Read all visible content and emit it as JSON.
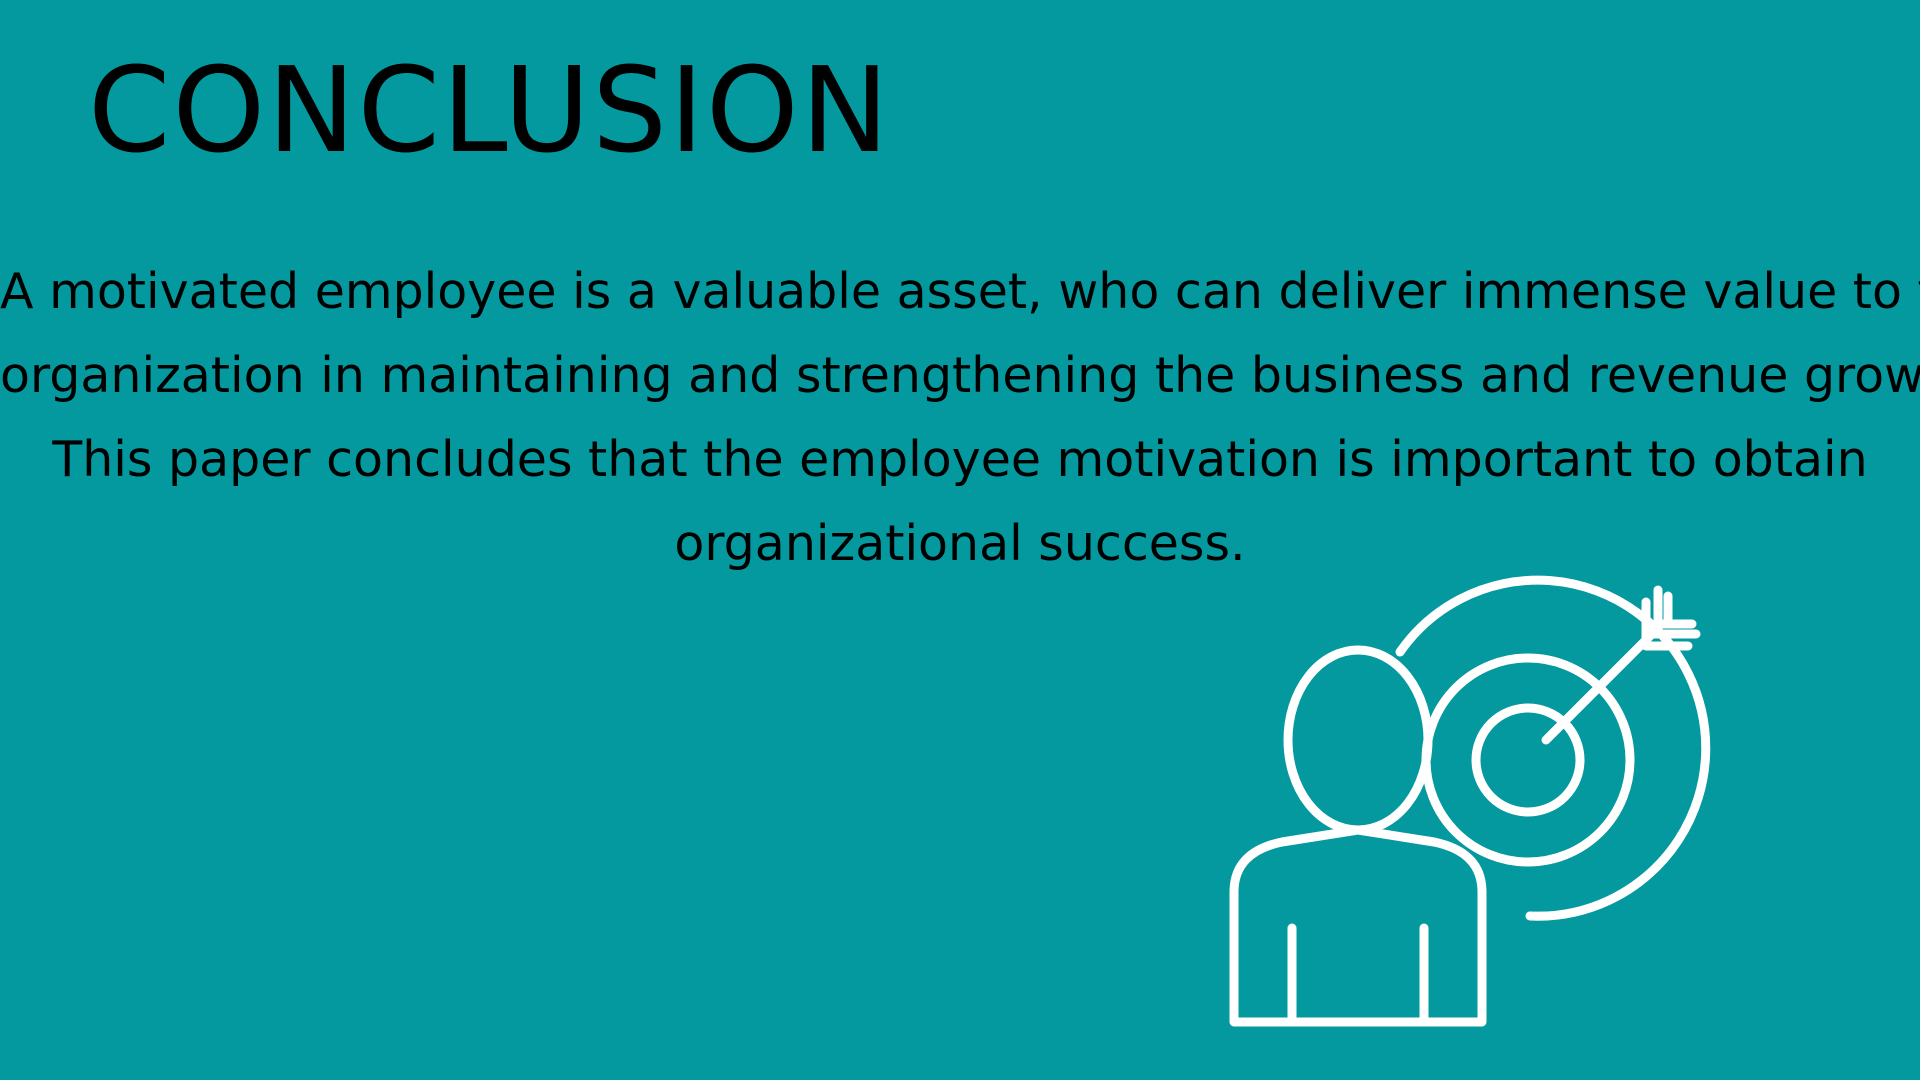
{
  "slide": {
    "title": "CONCLUSION",
    "body_lines": [
      "A motivated employee is a valuable asset, who can deliver immense value to the",
      "organization in maintaining and strengthening the business and revenue growth.",
      "This paper concludes that the employee motivation is important to obtain",
      "organizational success."
    ],
    "illustration_icon": "person-target-icon"
  },
  "colors": {
    "background": "#04999f",
    "text": "#000000",
    "icon_stroke": "#ffffff"
  }
}
